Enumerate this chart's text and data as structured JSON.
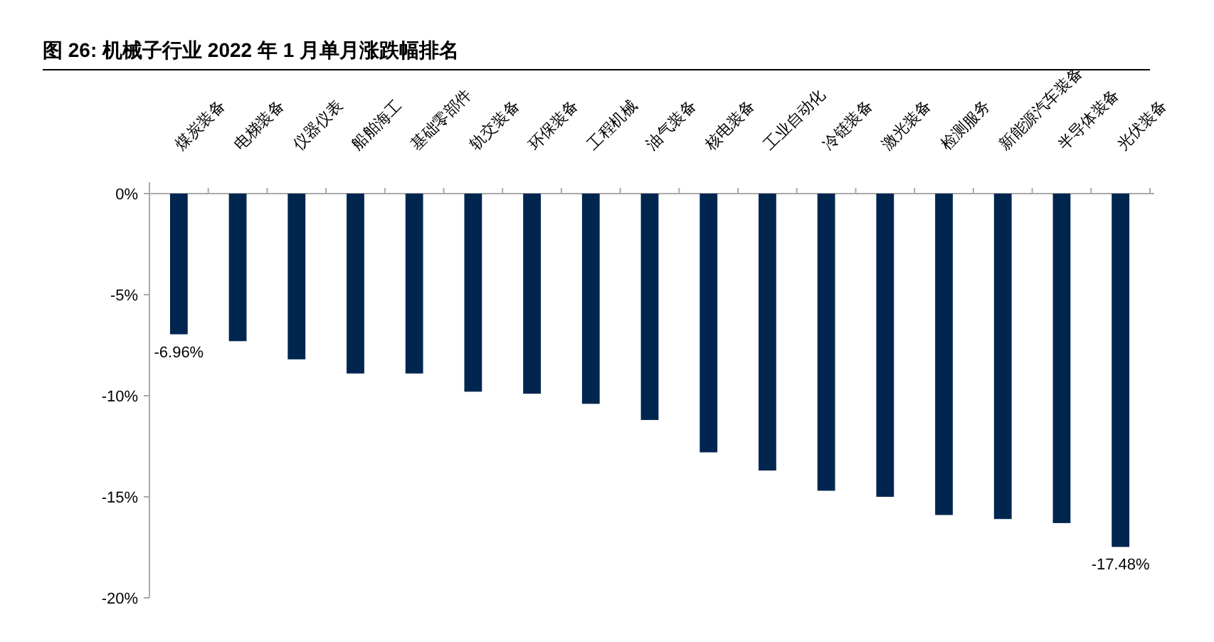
{
  "chart_data": {
    "type": "bar",
    "title": "图 26: 机械子行业 2022 年 1 月单月涨跌幅排名",
    "categories": [
      "煤炭装备",
      "电梯装备",
      "仪器仪表",
      "船舶海工",
      "基础零部件",
      "轨交装备",
      "环保装备",
      "工程机械",
      "油气装备",
      "核电装备",
      "工业自动化",
      "冷链装备",
      "激光装备",
      "检测服务",
      "新能源汽车装备",
      "半导体装备",
      "光伏装备"
    ],
    "values": [
      -6.96,
      -7.3,
      -8.2,
      -8.9,
      -8.9,
      -9.8,
      -9.9,
      -10.4,
      -11.2,
      -12.8,
      -13.7,
      -14.7,
      -15,
      -15.9,
      -16.1,
      -16.3,
      -17.48
    ],
    "value_labels": [
      "-6.96%",
      null,
      null,
      null,
      null,
      null,
      null,
      null,
      null,
      null,
      null,
      null,
      null,
      null,
      null,
      null,
      "-17.48%"
    ],
    "color": "#002650",
    "ylim": [
      -20,
      0
    ],
    "yticks": [
      {
        "value": 0,
        "label": "0%"
      },
      {
        "value": -5,
        "label": "-5%"
      },
      {
        "value": -10,
        "label": "-10%"
      },
      {
        "value": -15,
        "label": "-15%"
      },
      {
        "value": -20,
        "label": "-20%"
      }
    ],
    "grid": false
  }
}
